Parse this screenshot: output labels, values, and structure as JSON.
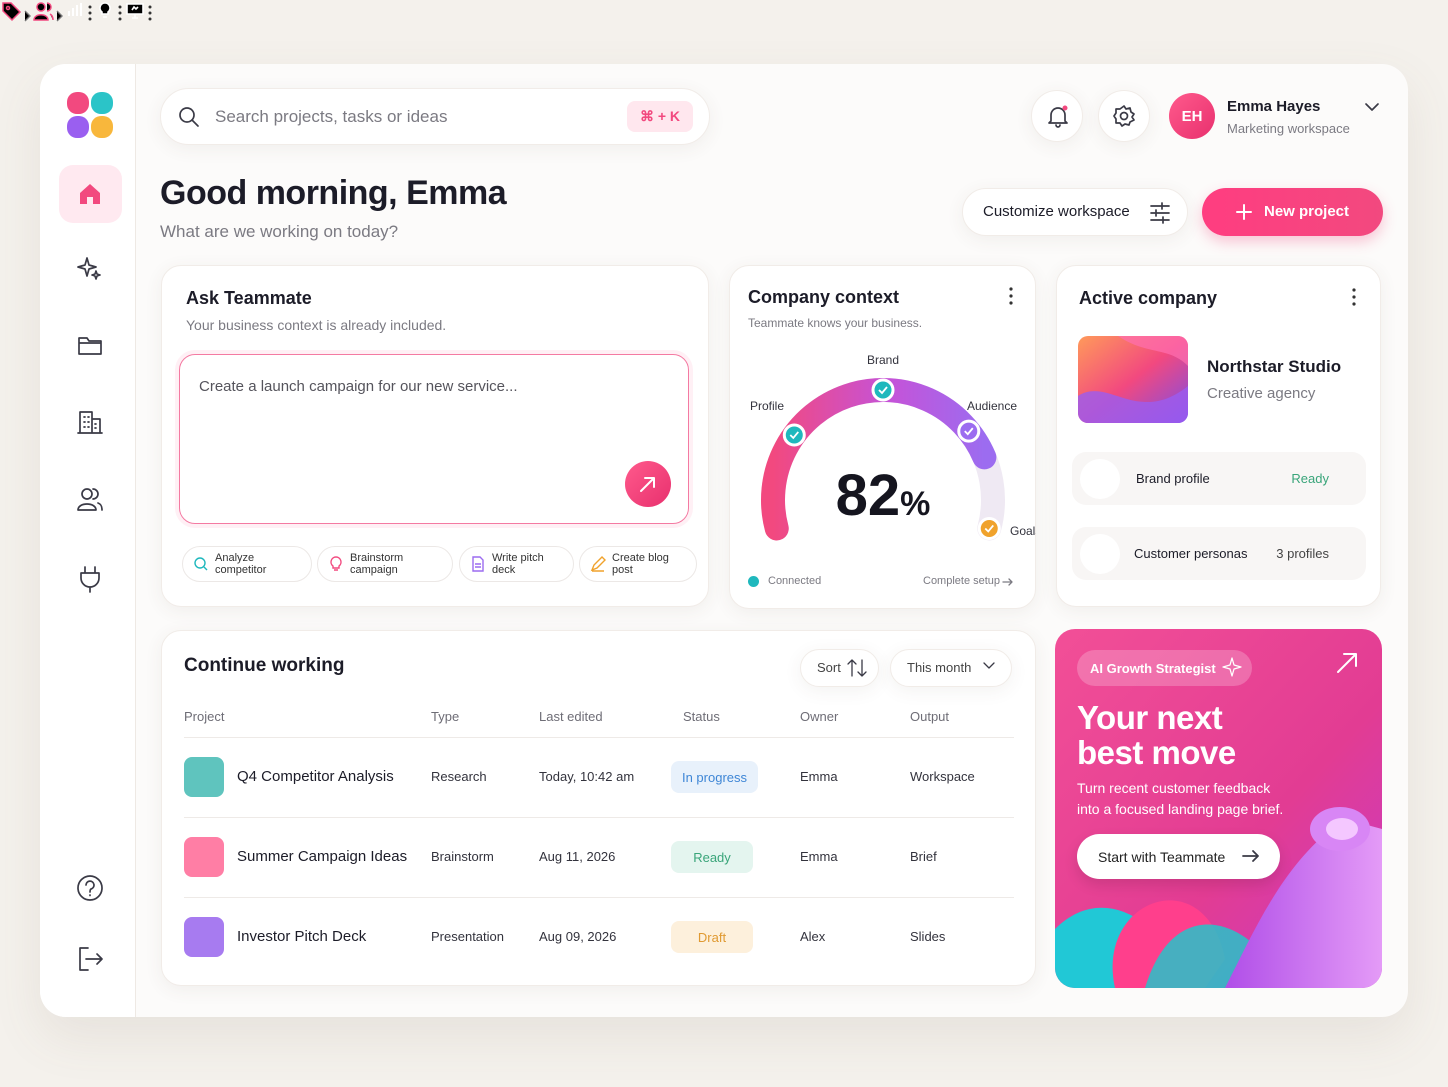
{
  "search": {
    "placeholder": "Search projects, tasks or ideas",
    "shortcut": "⌘ + K"
  },
  "user": {
    "initials": "EH",
    "name": "Emma Hayes",
    "workspace": "Marketing workspace"
  },
  "header": {
    "greeting": "Good morning, Emma",
    "subtitle": "What are we working on today?",
    "customize": "Customize workspace",
    "new_project": "New project"
  },
  "ask": {
    "title": "Ask Teammate",
    "subtitle": "Your business context is already included.",
    "prompt": "Create a launch campaign for our new service...",
    "chips": [
      "Analyze competitor",
      "Brainstorm campaign",
      "Write pitch deck",
      "Create blog post"
    ]
  },
  "context": {
    "title": "Company context",
    "subtitle": "Teammate knows your business.",
    "labels": [
      "Profile",
      "Brand",
      "Audience",
      "Goals"
    ],
    "value": 82,
    "unit": "%",
    "status": "Connected",
    "action": "Complete setup"
  },
  "company": {
    "title": "Active company",
    "name": "Northstar Studio",
    "kind": "Creative agency",
    "items": [
      {
        "label": "Brand profile",
        "meta": "Ready"
      },
      {
        "label": "Customer personas",
        "meta": "3 profiles"
      }
    ]
  },
  "table": {
    "title": "Continue working",
    "sort": "Sort",
    "period": "This month",
    "columns": [
      "Project",
      "Type",
      "Last edited",
      "Status",
      "Owner",
      "Output"
    ],
    "rows": [
      [
        "Q4 Competitor Analysis",
        "Research",
        "Today, 10:42 am",
        "In progress",
        "Emma",
        "Workspace"
      ],
      [
        "Summer Campaign Ideas",
        "Brainstorm",
        "Aug 11, 2026",
        "Ready",
        "Emma",
        "Brief"
      ],
      [
        "Investor Pitch Deck",
        "Presentation",
        "Aug 09, 2026",
        "Draft",
        "Alex",
        "Slides"
      ]
    ]
  },
  "promo": {
    "badge": "AI Growth Strategist",
    "title_lines": [
      "Your next",
      "best move"
    ],
    "text_lines": [
      "Turn recent customer feedback",
      "into a focused landing page brief."
    ],
    "button": "Start with Teammate"
  }
}
